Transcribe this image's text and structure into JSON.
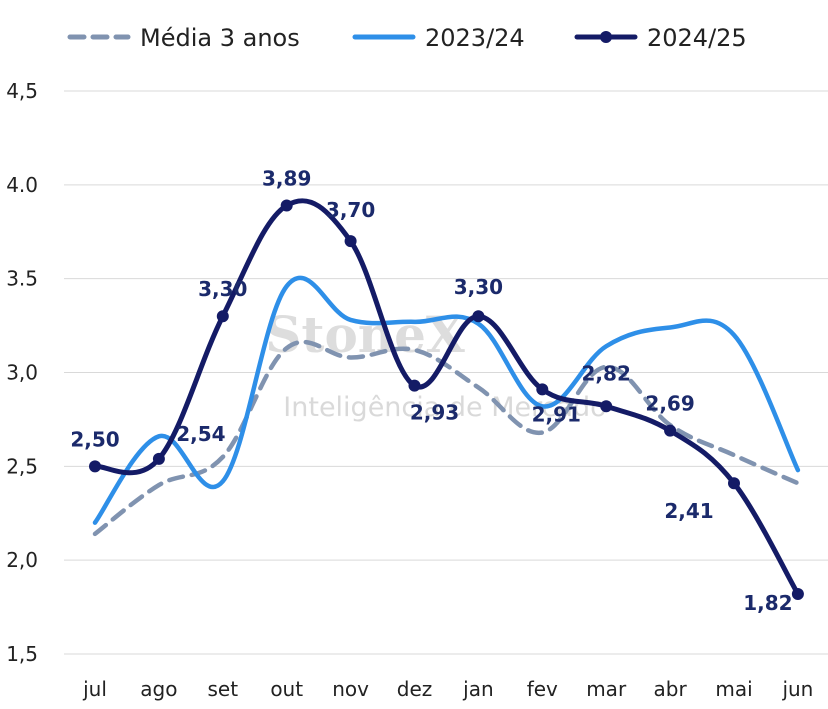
{
  "chart_data": {
    "type": "line",
    "categories": [
      "jul",
      "ago",
      "set",
      "out",
      "nov",
      "dez",
      "jan",
      "fev",
      "mar",
      "abr",
      "mai",
      "jun"
    ],
    "y_tick_labels": [
      "1,5",
      "2,0",
      "2,5",
      "3,0",
      "3.5",
      "4.0",
      "4,5"
    ],
    "ylim": [
      1.5,
      4.5
    ],
    "grid": true,
    "legend_position": "top",
    "series": [
      {
        "name": "Média 3 anos",
        "color": "#8093b0",
        "dash": true,
        "markers": false,
        "values": [
          2.14,
          2.4,
          2.55,
          3.13,
          3.08,
          3.12,
          2.92,
          2.68,
          3.03,
          2.72,
          2.56,
          2.41
        ]
      },
      {
        "name": "2023/24",
        "color": "#2e8fe8",
        "dash": false,
        "markers": false,
        "values": [
          2.2,
          2.66,
          2.42,
          3.46,
          3.28,
          3.27,
          3.26,
          2.82,
          3.14,
          3.24,
          3.2,
          2.48
        ]
      },
      {
        "name": "2024/25",
        "color": "#141b66",
        "dash": false,
        "markers": true,
        "values": [
          2.5,
          2.54,
          3.3,
          3.89,
          3.7,
          2.93,
          3.3,
          2.91,
          2.82,
          2.69,
          2.41,
          1.82
        ],
        "data_labels": [
          "2,50",
          "2,54",
          "3,30",
          "3,89",
          "3,70",
          "2,93",
          "3,30",
          "2,91",
          "2,82",
          "2,69",
          "2,41",
          "1,82"
        ]
      }
    ],
    "watermark": {
      "brand": "StoneX",
      "subtitle": "Inteligência de Mercado"
    }
  }
}
